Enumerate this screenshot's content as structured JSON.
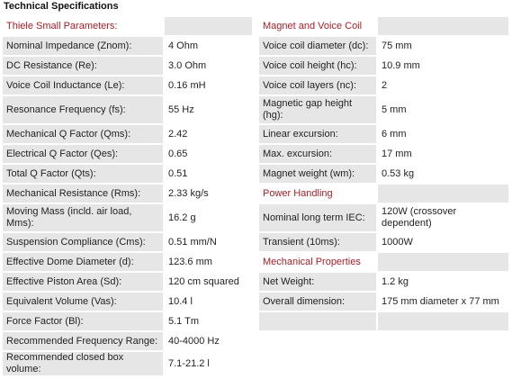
{
  "page_title": "Technical Specifications",
  "accent_color": "#a5202a",
  "left_section": {
    "title": "Thiele Small Parameters:",
    "rows": [
      {
        "label": "Nominal Impedance (Znom):",
        "value": "4 Ohm"
      },
      {
        "label": "DC Resistance (Re):",
        "value": "3.0 Ohm"
      },
      {
        "label": "Voice Coil Inductance (Le):",
        "value": "0.16 mH"
      },
      {
        "label": "Resonance Frequency (fs):",
        "value": "55 Hz"
      },
      {
        "label": "Mechanical Q Factor (Qms):",
        "value": "2.42"
      },
      {
        "label": "Electrical Q Factor (Qes):",
        "value": "0.65"
      },
      {
        "label": "Total Q Factor (Qts):",
        "value": "0.51"
      },
      {
        "label": "Mechanical Resistance (Rms):",
        "value": "2.33 kg/s"
      },
      {
        "label": "Moving Mass (incld. air load, Mms):",
        "value": "16.2 g"
      },
      {
        "label": "Suspension Compliance (Cms):",
        "value": "0.51 mm/N"
      },
      {
        "label": "Effective Dome Diameter (d):",
        "value": "123.6 mm"
      },
      {
        "label": "Effective Piston Area (Sd):",
        "value": "120 cm squared"
      },
      {
        "label": "Equivalent Volume (Vas):",
        "value": "10.4 l"
      },
      {
        "label": "Force Factor (Bl):",
        "value": "5.1 Tm"
      },
      {
        "label": "Recommended Frequency Range:",
        "value": "40-4000 Hz"
      },
      {
        "label": "Recommended closed box volume:",
        "value": "7.1-21.2 l"
      }
    ]
  },
  "right_sections": {
    "magnet": {
      "title": "Magnet and Voice Coil",
      "rows": [
        {
          "label": "Voice coil diameter (dc):",
          "value": "75 mm"
        },
        {
          "label": "Voice coil height (hc):",
          "value": "10.9 mm"
        },
        {
          "label": "Voice coil layers (nc):",
          "value": "2"
        },
        {
          "label": "Magnetic gap height (hg):",
          "value": "5 mm"
        },
        {
          "label": "Linear excursion:",
          "value": "6 mm"
        },
        {
          "label": "Max. excursion:",
          "value": "17 mm"
        },
        {
          "label": "Magnet weight (wm):",
          "value": "0.53 kg"
        }
      ]
    },
    "power": {
      "title": "Power Handling",
      "rows": [
        {
          "label": "Nominal long term IEC:",
          "value": "120W (crossover dependent)"
        },
        {
          "label": "Transient (10ms):",
          "value": "1000W"
        }
      ]
    },
    "mechanical": {
      "title": "Mechanical Properties",
      "rows": [
        {
          "label": "Net Weight:",
          "value": "1.2 kg"
        },
        {
          "label": "Overall dimension:",
          "value": "175 mm diameter x 77 mm"
        }
      ]
    }
  }
}
